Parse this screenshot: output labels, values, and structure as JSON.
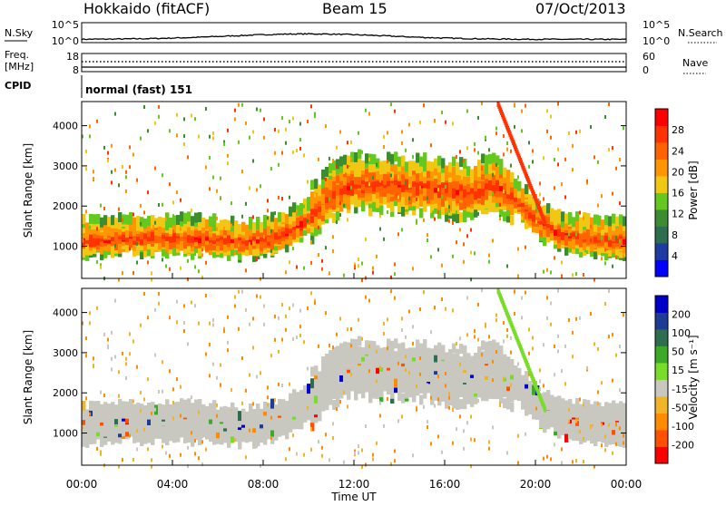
{
  "header": {
    "title": "Hokkaido (fitACF)",
    "beam": "Beam 15",
    "date": "07/Oct/2013"
  },
  "info_panels": {
    "nsky": {
      "label": "N.Sky",
      "ticks_left": [
        "10^5",
        "10^0"
      ],
      "ticks_right": [
        "10^5",
        "10^0"
      ],
      "right_label": "N.Search"
    },
    "freq": {
      "label_line1": "Freq.",
      "label_line2": "[MHz]",
      "ticks_left": [
        "18",
        "8"
      ],
      "ticks_right": [
        "60",
        "0"
      ],
      "right_label": "Nave"
    },
    "cpid": {
      "label": "CPID",
      "text": "normal (fast) 151"
    }
  },
  "colors": {
    "power_scale": [
      "#0000ff",
      "#1e3ca0",
      "#2d6e50",
      "#3c8c32",
      "#64c81e",
      "#f0c814",
      "#ff9600",
      "#ff6400",
      "#ff3200",
      "#ff0000"
    ],
    "velocity_scale": [
      "#0000c8",
      "#1e3c96",
      "#2d6e50",
      "#3caa28",
      "#78dc28",
      "#c8c8c0",
      "#f0b428",
      "#ff8c00",
      "#ff5000",
      "#ff0000"
    ],
    "grey": "#c8c8c0"
  },
  "chart_data": [
    {
      "type": "heatmap",
      "name": "Power",
      "ylabel": "Slant Range [km]",
      "yticks": [
        "1000",
        "2000",
        "3000",
        "4000"
      ],
      "ylim": [
        200,
        4600
      ],
      "colorbar_label": "Power [dB]",
      "colorbar_ticks": [
        "4",
        "8",
        "12",
        "16",
        "20",
        "24",
        "28"
      ],
      "colorbar_range": [
        0,
        32
      ],
      "band_center_km": [
        [
          0,
          1150
        ],
        [
          1,
          1150
        ],
        [
          2,
          1180
        ],
        [
          3,
          1200
        ],
        [
          4,
          1200
        ],
        [
          5,
          1180
        ],
        [
          6,
          1150
        ],
        [
          7,
          1100
        ],
        [
          8,
          1150
        ],
        [
          9,
          1350
        ],
        [
          10,
          1700
        ],
        [
          11,
          2300
        ],
        [
          12,
          2500
        ],
        [
          13,
          2500
        ],
        [
          14,
          2450
        ],
        [
          15,
          2450
        ],
        [
          16,
          2350
        ],
        [
          17,
          2300
        ],
        [
          18,
          2500
        ],
        [
          19,
          2200
        ],
        [
          20,
          1600
        ],
        [
          21,
          1300
        ],
        [
          22,
          1200
        ],
        [
          23,
          1150
        ],
        [
          24,
          1100
        ]
      ]
    },
    {
      "type": "heatmap",
      "name": "Velocity",
      "ylabel": "Slant Range [km]",
      "yticks": [
        "1000",
        "2000",
        "3000",
        "4000"
      ],
      "ylim": [
        200,
        4600
      ],
      "colorbar_label": "Velocity [m s⁻¹]",
      "colorbar_ticks": [
        "200",
        "100",
        "50",
        "15",
        "-15",
        "-50",
        "-100",
        "-200"
      ],
      "colorbar_range": [
        -300,
        300
      ]
    }
  ],
  "xaxis": {
    "ticks": [
      "00:00",
      "04:00",
      "08:00",
      "12:00",
      "16:00",
      "20:00",
      "00:00"
    ],
    "label": "Time UT"
  }
}
